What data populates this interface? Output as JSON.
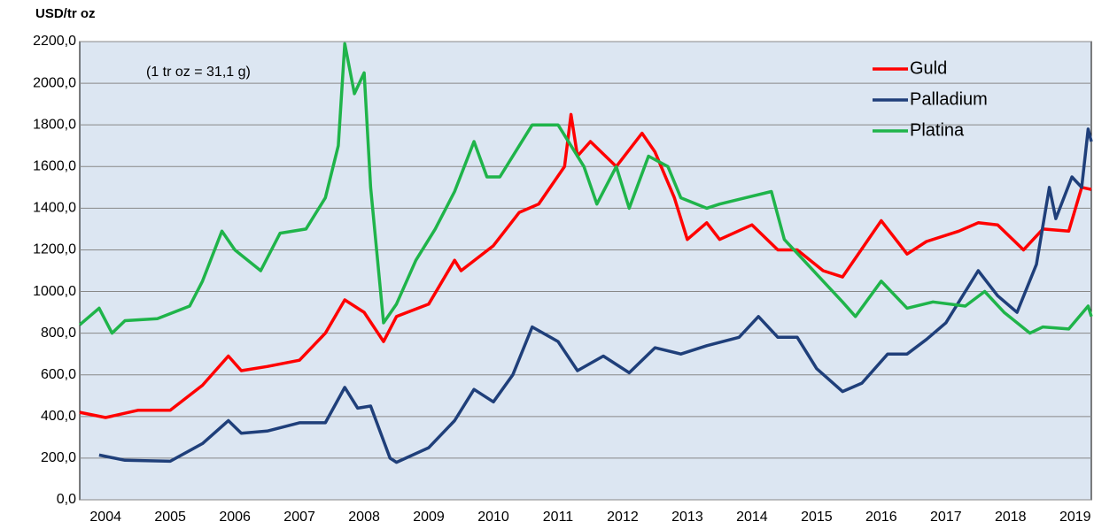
{
  "chart_data": {
    "type": "line",
    "y_axis_label": "USD/tr oz",
    "annotation": "(1 tr oz = 31,1 g)",
    "xlim": [
      2004.1,
      2019.75
    ],
    "xticks": [
      {
        "value": 2004.5,
        "label": "2004"
      },
      {
        "value": 2005.5,
        "label": "2005"
      },
      {
        "value": 2006.5,
        "label": "2006"
      },
      {
        "value": 2007.5,
        "label": "2007"
      },
      {
        "value": 2008.5,
        "label": "2008"
      },
      {
        "value": 2009.5,
        "label": "2009"
      },
      {
        "value": 2010.5,
        "label": "2010"
      },
      {
        "value": 2011.5,
        "label": "2011"
      },
      {
        "value": 2012.5,
        "label": "2012"
      },
      {
        "value": 2013.5,
        "label": "2013"
      },
      {
        "value": 2014.5,
        "label": "2014"
      },
      {
        "value": 2015.5,
        "label": "2015"
      },
      {
        "value": 2016.5,
        "label": "2016"
      },
      {
        "value": 2017.5,
        "label": "2017"
      },
      {
        "value": 2018.5,
        "label": "2018"
      },
      {
        "value": 2019.5,
        "label": "2019"
      }
    ],
    "ylim": [
      0,
      2200
    ],
    "yticks": [
      {
        "value": 0,
        "label": "0,0"
      },
      {
        "value": 200,
        "label": "200,0"
      },
      {
        "value": 400,
        "label": "400,0"
      },
      {
        "value": 600,
        "label": "600,0"
      },
      {
        "value": 800,
        "label": "800,0"
      },
      {
        "value": 1000,
        "label": "1000,0"
      },
      {
        "value": 1200,
        "label": "1200,0"
      },
      {
        "value": 1400,
        "label": "1400,0"
      },
      {
        "value": 1600,
        "label": "1600,0"
      },
      {
        "value": 1800,
        "label": "1800,0"
      },
      {
        "value": 2000,
        "label": "2000,0"
      },
      {
        "value": 2200,
        "label": "2200,0"
      }
    ],
    "grid": true,
    "legend": "upper right",
    "series": [
      {
        "name": "Guld",
        "color": "#ff0000",
        "x": [
          2004.1,
          2004.5,
          2005.0,
          2005.5,
          2006.0,
          2006.4,
          2006.6,
          2007.0,
          2007.5,
          2007.9,
          2008.2,
          2008.5,
          2008.8,
          2009.0,
          2009.5,
          2009.9,
          2010.0,
          2010.5,
          2010.9,
          2011.2,
          2011.6,
          2011.7,
          2011.8,
          2012.0,
          2012.4,
          2012.8,
          2013.0,
          2013.3,
          2013.5,
          2013.8,
          2014.0,
          2014.5,
          2014.9,
          2015.2,
          2015.6,
          2015.9,
          2016.5,
          2016.9,
          2017.2,
          2017.7,
          2018.0,
          2018.3,
          2018.7,
          2019.0,
          2019.4,
          2019.6,
          2019.75
        ],
        "values": [
          420,
          395,
          430,
          430,
          550,
          690,
          620,
          640,
          670,
          800,
          960,
          900,
          760,
          880,
          940,
          1150,
          1100,
          1220,
          1380,
          1420,
          1600,
          1850,
          1650,
          1720,
          1600,
          1760,
          1670,
          1450,
          1250,
          1330,
          1250,
          1320,
          1200,
          1200,
          1100,
          1070,
          1340,
          1180,
          1240,
          1290,
          1330,
          1320,
          1200,
          1300,
          1290,
          1500,
          1490
        ]
      },
      {
        "name": "Palladium",
        "color": "#1f3f7a",
        "x": [
          2004.4,
          2004.8,
          2005.5,
          2006.0,
          2006.4,
          2006.6,
          2007.0,
          2007.5,
          2007.9,
          2008.2,
          2008.4,
          2008.6,
          2008.9,
          2009.0,
          2009.5,
          2009.9,
          2010.2,
          2010.5,
          2010.8,
          2011.1,
          2011.5,
          2011.8,
          2012.2,
          2012.6,
          2013.0,
          2013.4,
          2013.8,
          2014.3,
          2014.6,
          2014.9,
          2015.2,
          2015.5,
          2015.9,
          2016.2,
          2016.6,
          2016.9,
          2017.2,
          2017.5,
          2018.0,
          2018.3,
          2018.6,
          2018.9,
          2019.1,
          2019.2,
          2019.45,
          2019.6,
          2019.7,
          2019.75
        ],
        "values": [
          215,
          190,
          185,
          270,
          380,
          320,
          330,
          370,
          370,
          540,
          440,
          450,
          200,
          180,
          250,
          380,
          530,
          470,
          600,
          830,
          760,
          620,
          690,
          610,
          730,
          700,
          740,
          780,
          880,
          780,
          780,
          630,
          520,
          560,
          700,
          700,
          770,
          850,
          1100,
          980,
          900,
          1130,
          1500,
          1350,
          1550,
          1500,
          1780,
          1720
        ]
      },
      {
        "name": "Platina",
        "color": "#1fb44a",
        "x": [
          2004.1,
          2004.4,
          2004.6,
          2004.8,
          2005.3,
          2005.8,
          2006.0,
          2006.3,
          2006.5,
          2006.9,
          2007.2,
          2007.6,
          2007.9,
          2008.1,
          2008.2,
          2008.35,
          2008.5,
          2008.6,
          2008.8,
          2009.0,
          2009.3,
          2009.6,
          2009.9,
          2010.2,
          2010.4,
          2010.6,
          2010.9,
          2011.1,
          2011.5,
          2011.7,
          2011.9,
          2012.1,
          2012.4,
          2012.6,
          2012.9,
          2013.2,
          2013.4,
          2013.8,
          2014.0,
          2014.4,
          2014.8,
          2015.0,
          2015.3,
          2015.6,
          2015.9,
          2016.1,
          2016.5,
          2016.9,
          2017.3,
          2017.8,
          2018.1,
          2018.4,
          2018.8,
          2019.0,
          2019.4,
          2019.7,
          2019.75
        ],
        "values": [
          840,
          920,
          800,
          860,
          870,
          930,
          1050,
          1290,
          1200,
          1100,
          1280,
          1300,
          1450,
          1700,
          2190,
          1950,
          2050,
          1500,
          850,
          940,
          1150,
          1300,
          1480,
          1720,
          1550,
          1550,
          1700,
          1800,
          1800,
          1700,
          1600,
          1420,
          1600,
          1400,
          1650,
          1600,
          1450,
          1400,
          1420,
          1450,
          1480,
          1250,
          1150,
          1050,
          950,
          880,
          1050,
          920,
          950,
          930,
          1000,
          900,
          800,
          830,
          820,
          930,
          880
        ]
      }
    ]
  }
}
